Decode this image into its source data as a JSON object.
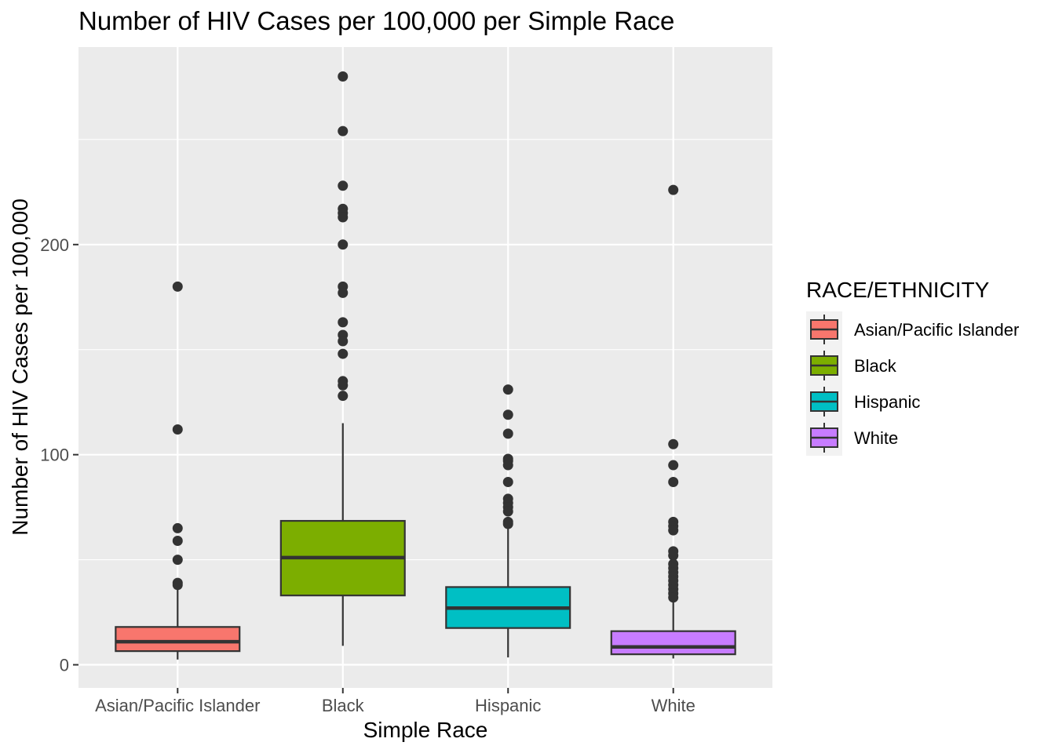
{
  "chart_data": {
    "type": "boxplot",
    "title": "Number of HIV Cases per 100,000 per Simple Race",
    "xlabel": "Simple Race",
    "ylabel": "Number of HIV Cases per 100,000",
    "ylim": [
      -11,
      294
    ],
    "yticks": [
      0,
      100,
      200
    ],
    "grid": true,
    "legend_title": "RACE/ETHNICITY",
    "legend_position": "right",
    "categories": [
      "Asian/Pacific Islander",
      "Black",
      "Hispanic",
      "White"
    ],
    "colors": [
      "#F8766D",
      "#7CAE00",
      "#00BFC4",
      "#C77CFF"
    ],
    "boxes": [
      {
        "label": "Asian/Pacific Islander",
        "min": 2.5,
        "q1": 6.5,
        "median": 11,
        "q3": 18,
        "max": 36,
        "outliers": [
          180,
          112,
          65,
          59,
          50,
          39,
          38
        ]
      },
      {
        "label": "Black",
        "min": 9,
        "q1": 33,
        "median": 51,
        "q3": 68.5,
        "max": 115,
        "outliers": [
          280,
          254,
          228,
          217,
          215,
          213,
          200,
          180,
          177,
          163,
          157,
          154,
          148,
          135,
          133,
          128
        ]
      },
      {
        "label": "Hispanic",
        "min": 3.5,
        "q1": 17.5,
        "median": 27,
        "q3": 37,
        "max": 67,
        "outliers": [
          131,
          119,
          110,
          98,
          97,
          95,
          87,
          79,
          77,
          75,
          73,
          68,
          67
        ]
      },
      {
        "label": "White",
        "min": 3,
        "q1": 5,
        "median": 8.5,
        "q3": 16,
        "max": 31,
        "outliers": [
          226,
          105,
          95,
          87,
          68,
          66,
          64,
          54,
          52,
          48,
          46,
          44,
          42,
          40,
          38,
          36,
          34,
          32
        ]
      }
    ]
  }
}
